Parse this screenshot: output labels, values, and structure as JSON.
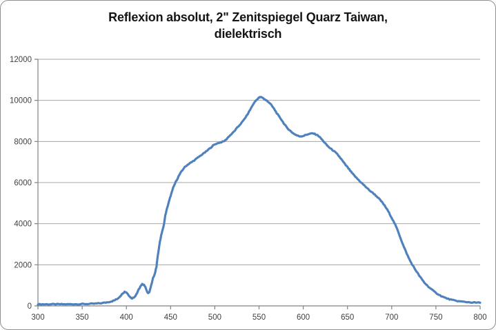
{
  "title": {
    "line1": "Reflexion absolut, 2\" Zenitspiegel Quarz Taiwan,",
    "line2": "dielektrisch"
  },
  "colors": {
    "line": "#4F81BD",
    "gridline": "#A6A6A6",
    "axis": "#808080",
    "tick_text": "#3f3f3f",
    "background": "#FFFFFF",
    "border": "#8F8F8F"
  },
  "chart_data": {
    "type": "line",
    "title": "Reflexion absolut, 2\" Zenitspiegel Quarz Taiwan, dielektrisch",
    "xlabel": "",
    "ylabel": "",
    "xlim": [
      300,
      800
    ],
    "ylim": [
      0,
      12000
    ],
    "xticks": [
      300,
      350,
      400,
      450,
      500,
      550,
      600,
      650,
      700,
      750,
      800
    ],
    "yticks": [
      0,
      2000,
      4000,
      6000,
      8000,
      10000,
      12000
    ],
    "grid": "horizontal-major",
    "legend": "none",
    "series": [
      {
        "name": "Reflexion absolut",
        "color": "#4F81BD",
        "points": [
          [
            300,
            80
          ],
          [
            305,
            80
          ],
          [
            310,
            80
          ],
          [
            315,
            80
          ],
          [
            320,
            80
          ],
          [
            325,
            80
          ],
          [
            330,
            80
          ],
          [
            335,
            80
          ],
          [
            340,
            85
          ],
          [
            345,
            85
          ],
          [
            350,
            90
          ],
          [
            355,
            95
          ],
          [
            360,
            100
          ],
          [
            365,
            110
          ],
          [
            370,
            125
          ],
          [
            375,
            150
          ],
          [
            380,
            190
          ],
          [
            384,
            230
          ],
          [
            387,
            280
          ],
          [
            390,
            350
          ],
          [
            393,
            470
          ],
          [
            396,
            620
          ],
          [
            398,
            690
          ],
          [
            400,
            660
          ],
          [
            402,
            560
          ],
          [
            404,
            440
          ],
          [
            406,
            370
          ],
          [
            408,
            400
          ],
          [
            410,
            480
          ],
          [
            412,
            620
          ],
          [
            414,
            800
          ],
          [
            416,
            950
          ],
          [
            418,
            1050
          ],
          [
            420,
            1030
          ],
          [
            422,
            870
          ],
          [
            424,
            620
          ],
          [
            426,
            650
          ],
          [
            428,
            1000
          ],
          [
            430,
            1350
          ],
          [
            432,
            1520
          ],
          [
            434,
            1900
          ],
          [
            436,
            2600
          ],
          [
            438,
            3150
          ],
          [
            440,
            3550
          ],
          [
            442,
            3850
          ],
          [
            444,
            4400
          ],
          [
            446,
            4750
          ],
          [
            448,
            5050
          ],
          [
            450,
            5350
          ],
          [
            453,
            5750
          ],
          [
            456,
            6050
          ],
          [
            459,
            6300
          ],
          [
            462,
            6520
          ],
          [
            465,
            6700
          ],
          [
            468,
            6830
          ],
          [
            471,
            6920
          ],
          [
            474,
            7000
          ],
          [
            478,
            7120
          ],
          [
            482,
            7250
          ],
          [
            486,
            7380
          ],
          [
            490,
            7500
          ],
          [
            494,
            7650
          ],
          [
            498,
            7800
          ],
          [
            502,
            7900
          ],
          [
            506,
            7950
          ],
          [
            510,
            8000
          ],
          [
            513,
            8100
          ],
          [
            516,
            8250
          ],
          [
            520,
            8400
          ],
          [
            524,
            8600
          ],
          [
            528,
            8800
          ],
          [
            532,
            9000
          ],
          [
            536,
            9250
          ],
          [
            540,
            9550
          ],
          [
            544,
            9850
          ],
          [
            547,
            10020
          ],
          [
            550,
            10130
          ],
          [
            552,
            10160
          ],
          [
            554,
            10130
          ],
          [
            556,
            10060
          ],
          [
            558,
            10000
          ],
          [
            560,
            9950
          ],
          [
            563,
            9820
          ],
          [
            566,
            9650
          ],
          [
            569,
            9450
          ],
          [
            572,
            9250
          ],
          [
            575,
            9080
          ],
          [
            578,
            8880
          ],
          [
            581,
            8700
          ],
          [
            584,
            8570
          ],
          [
            587,
            8450
          ],
          [
            590,
            8360
          ],
          [
            593,
            8290
          ],
          [
            596,
            8250
          ],
          [
            599,
            8260
          ],
          [
            602,
            8300
          ],
          [
            605,
            8350
          ],
          [
            608,
            8380
          ],
          [
            611,
            8390
          ],
          [
            614,
            8350
          ],
          [
            617,
            8280
          ],
          [
            620,
            8150
          ],
          [
            623,
            8000
          ],
          [
            626,
            7850
          ],
          [
            629,
            7720
          ],
          [
            632,
            7620
          ],
          [
            635,
            7520
          ],
          [
            638,
            7400
          ],
          [
            641,
            7250
          ],
          [
            644,
            7080
          ],
          [
            647,
            6900
          ],
          [
            650,
            6750
          ],
          [
            653,
            6580
          ],
          [
            656,
            6420
          ],
          [
            659,
            6280
          ],
          [
            662,
            6150
          ],
          [
            665,
            6020
          ],
          [
            668,
            5900
          ],
          [
            671,
            5780
          ],
          [
            674,
            5650
          ],
          [
            677,
            5550
          ],
          [
            680,
            5450
          ],
          [
            683,
            5330
          ],
          [
            686,
            5200
          ],
          [
            689,
            5050
          ],
          [
            692,
            4880
          ],
          [
            695,
            4680
          ],
          [
            698,
            4450
          ],
          [
            701,
            4200
          ],
          [
            704,
            3950
          ],
          [
            707,
            3650
          ],
          [
            710,
            3300
          ],
          [
            713,
            2950
          ],
          [
            716,
            2650
          ],
          [
            719,
            2350
          ],
          [
            722,
            2100
          ],
          [
            725,
            1880
          ],
          [
            728,
            1680
          ],
          [
            731,
            1480
          ],
          [
            734,
            1300
          ],
          [
            737,
            1130
          ],
          [
            740,
            1000
          ],
          [
            744,
            840
          ],
          [
            748,
            700
          ],
          [
            752,
            580
          ],
          [
            756,
            480
          ],
          [
            760,
            400
          ],
          [
            764,
            340
          ],
          [
            768,
            290
          ],
          [
            772,
            255
          ],
          [
            776,
            225
          ],
          [
            780,
            205
          ],
          [
            785,
            185
          ],
          [
            790,
            170
          ],
          [
            795,
            160
          ],
          [
            800,
            155
          ]
        ]
      }
    ]
  }
}
